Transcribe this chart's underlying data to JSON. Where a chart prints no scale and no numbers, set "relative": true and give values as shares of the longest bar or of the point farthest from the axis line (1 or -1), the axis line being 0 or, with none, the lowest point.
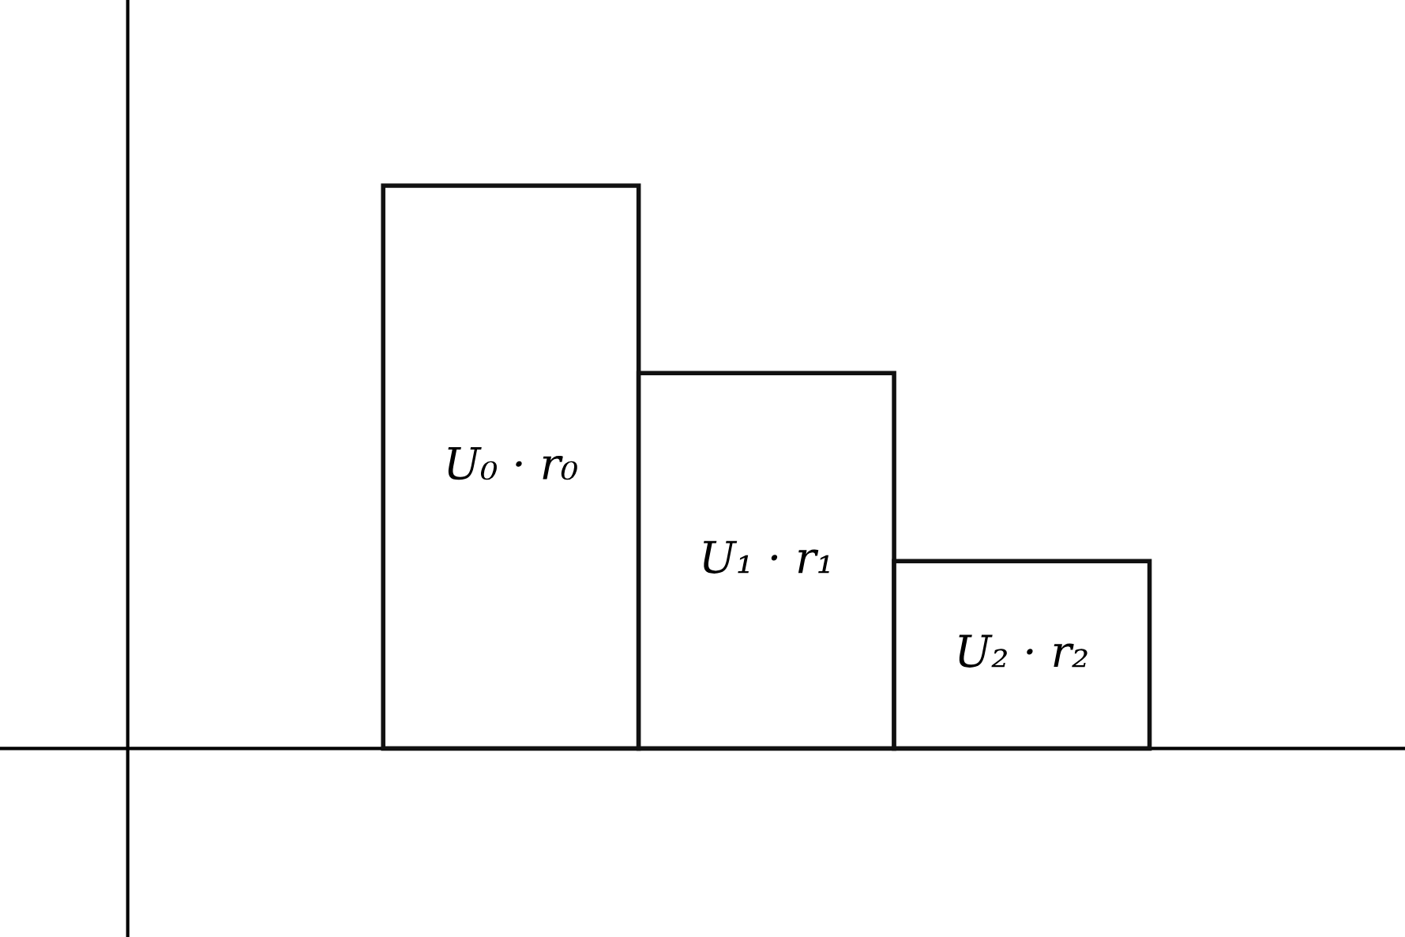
{
  "chart_data": {
    "type": "bar",
    "relative": true,
    "categories": [
      null,
      null,
      null
    ],
    "values": [
      1,
      0.667,
      0.333
    ],
    "color": "#ffffff",
    "grid": false,
    "legend": false,
    "annotations": [
      "U₀ · r₀",
      "U₁ · r₁",
      "U₂ · r₂"
    ]
  }
}
